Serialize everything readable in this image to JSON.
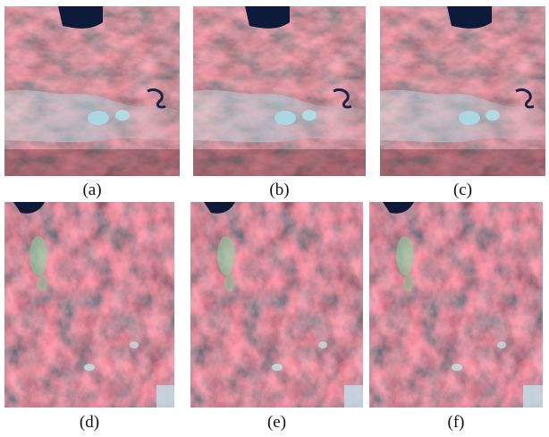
{
  "panels": [
    {
      "id": "a",
      "caption": "(a)"
    },
    {
      "id": "b",
      "caption": "(b)"
    },
    {
      "id": "c",
      "caption": "(c)"
    },
    {
      "id": "d",
      "caption": "(d)"
    },
    {
      "id": "e",
      "caption": "(e)"
    },
    {
      "id": "f",
      "caption": "(f)"
    }
  ],
  "colors": {
    "terrain_red": "#b8505a",
    "terrain_dark": "#4a2a2c",
    "terrain_pink": "#d48a90",
    "valley_cyan": "#a8d4dc",
    "water_dark": "#0d1a3a",
    "vegetation_green": "#7fd8a0"
  }
}
